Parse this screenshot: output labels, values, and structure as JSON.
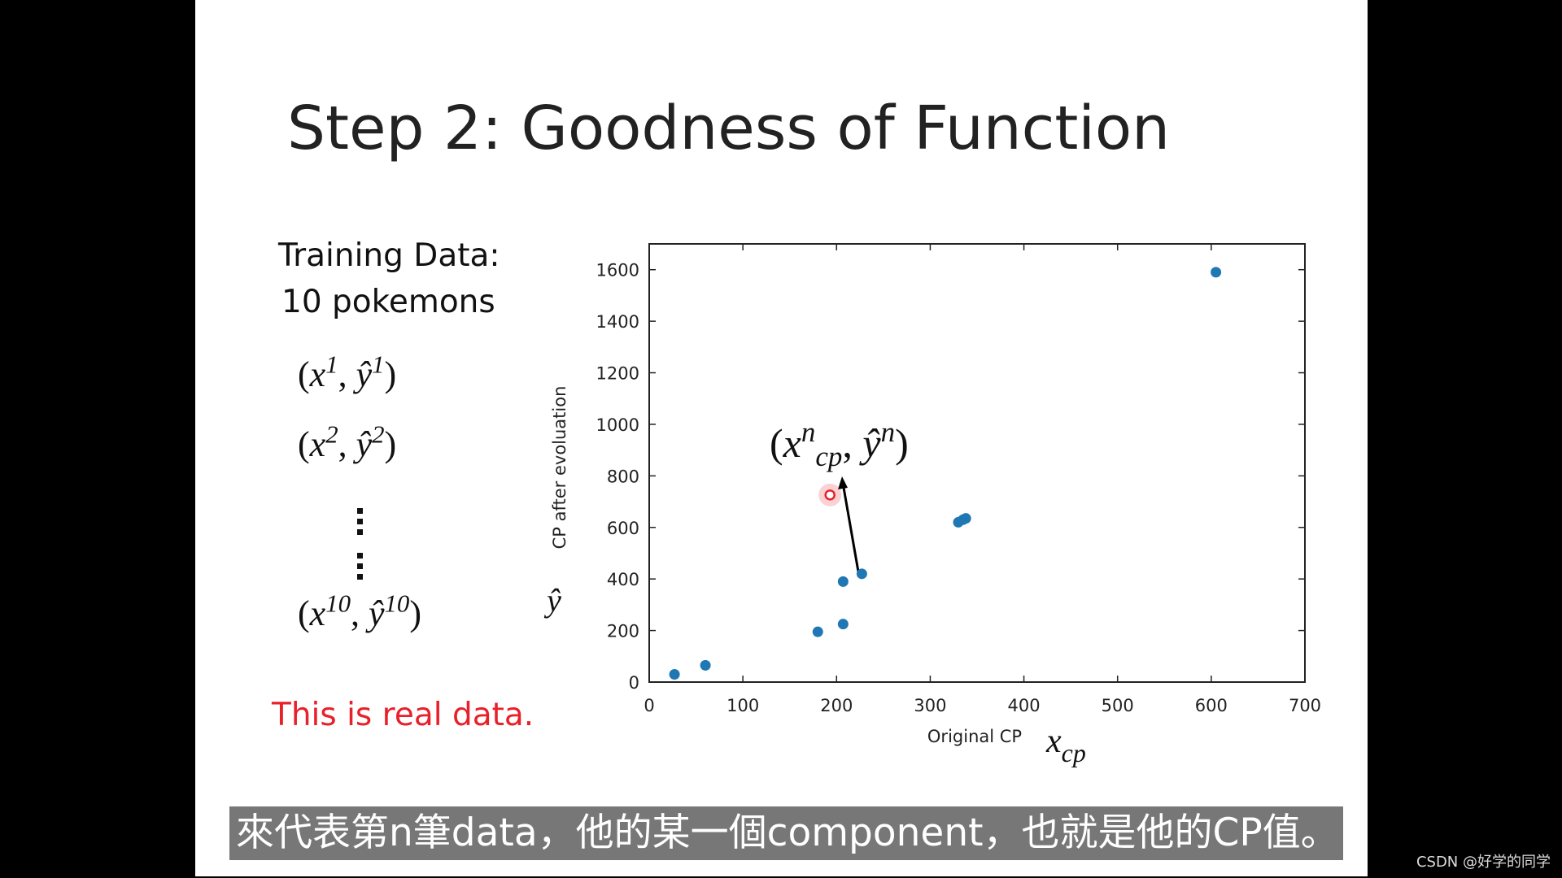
{
  "slide": {
    "title": "Step 2: Goodness of Function",
    "training_heading": [
      "Training Data:",
      "10 pokemons"
    ],
    "training_pairs": [
      {
        "open": "(",
        "base1": "x",
        "sup1": "1",
        "sep": ", ",
        "base2": "ŷ",
        "sup2": "1",
        "close": ")"
      },
      {
        "open": "(",
        "base1": "x",
        "sup1": "2",
        "sep": ", ",
        "base2": "ŷ",
        "sup2": "2",
        "close": ")"
      },
      {
        "open": "(",
        "base1": "x",
        "sup1": "10",
        "sep": ", ",
        "base2": "ŷ",
        "sup2": "10",
        "close": ")"
      }
    ],
    "note": "This is real data."
  },
  "chart_data": {
    "type": "scatter",
    "color": "#1f77b4",
    "x": [
      27,
      60,
      180,
      207,
      207,
      227,
      330,
      335,
      338,
      605
    ],
    "values": [
      30,
      65,
      195,
      225,
      390,
      420,
      620,
      630,
      635,
      1590
    ],
    "xlim": [
      0,
      700
    ],
    "ylim": [
      0,
      1700
    ],
    "xticks": [
      0,
      100,
      200,
      300,
      400,
      500,
      600,
      700
    ],
    "yticks": [
      0,
      200,
      400,
      600,
      800,
      1000,
      1200,
      1400,
      1600
    ],
    "x_label": "Original CP",
    "y_label": "CP after evoluation",
    "x_symbol": {
      "base": "x",
      "sub": "cp"
    },
    "y_symbol": "ŷ",
    "highlight": {
      "x": 193,
      "y": 726,
      "color": "#e8202a",
      "label": {
        "open": "(",
        "base1": "x",
        "sup1": "n",
        "sub1": "cp",
        "sep": ", ",
        "base2": "ŷ",
        "sup2": "n",
        "close": ")"
      }
    }
  },
  "subtitle": "來代表第n筆data，他的某一個component，也就是他的CP值。",
  "watermark": "CSDN @好学的同学"
}
